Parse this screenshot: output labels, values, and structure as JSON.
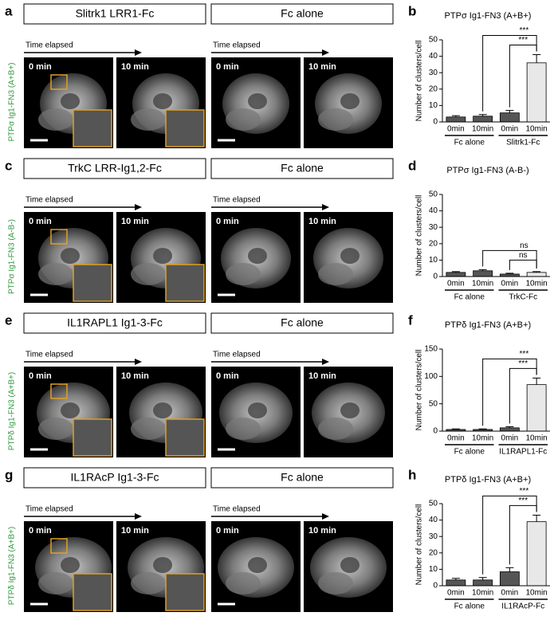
{
  "panels": {
    "rows": [
      {
        "letter": "a",
        "side_label": "PTPσ Ig1-FN3 (A+B+)",
        "columns": [
          {
            "header": "Slitrk1 LRR1-Fc",
            "time_label": "Time elapsed",
            "images": [
              "0 min",
              "10 min"
            ]
          },
          {
            "header": "Fc alone",
            "time_label": "Time elapsed",
            "images": [
              "0 min",
              "10 min"
            ]
          }
        ]
      },
      {
        "letter": "c",
        "side_label": "PTPσ Ig1-FN3 (A-B-)",
        "columns": [
          {
            "header": "TrkC LRR-Ig1,2-Fc",
            "time_label": "Time elapsed",
            "images": [
              "0 min",
              "10 min"
            ]
          },
          {
            "header": "Fc alone",
            "time_label": "Time elapsed",
            "images": [
              "0 min",
              "10 min"
            ]
          }
        ]
      },
      {
        "letter": "e",
        "side_label": "PTPδ Ig1-FN3 (A+B+)",
        "columns": [
          {
            "header": "IL1RAPL1 Ig1-3-Fc",
            "time_label": "Time elapsed",
            "images": [
              "0 min",
              "10 min"
            ]
          },
          {
            "header": "Fc alone",
            "time_label": "Time elapsed",
            "images": [
              "0 min",
              "10 min"
            ]
          }
        ]
      },
      {
        "letter": "g",
        "side_label": "PTPδ Ig1-FN3 (A+B+)",
        "columns": [
          {
            "header": "IL1RAcP Ig1-3-Fc",
            "time_label": "Time elapsed",
            "images": [
              "0 min",
              "10 min"
            ]
          },
          {
            "header": "Fc alone",
            "time_label": "Time elapsed",
            "images": [
              "0 min",
              "10 min"
            ]
          }
        ]
      }
    ]
  },
  "chart_data": [
    {
      "type": "bar",
      "letter": "b",
      "title": "PTPσ Ig1-FN3 (A+B+)",
      "ylabel": "Number of clusters/cell",
      "categories": [
        "0min",
        "10min",
        "0min",
        "10min"
      ],
      "values": [
        3,
        3.5,
        5.5,
        36
      ],
      "errors": [
        0.8,
        1,
        1.5,
        5
      ],
      "colors": [
        "#555555",
        "#555555",
        "#555555",
        "#e8e8e8"
      ],
      "groups": [
        "Fc alone",
        "Slitrk1-Fc"
      ],
      "significance": [
        "***",
        "***"
      ],
      "ylim": [
        0,
        50
      ],
      "yticks": [
        0,
        10,
        20,
        30,
        40,
        50
      ]
    },
    {
      "type": "bar",
      "letter": "d",
      "title": "PTPσ Ig1-FN3 (A-B-)",
      "ylabel": "Number of clusters/cell",
      "categories": [
        "0min",
        "10min",
        "0min",
        "10min"
      ],
      "values": [
        2.5,
        3.5,
        1.5,
        2.5
      ],
      "errors": [
        0.5,
        0.7,
        0.5,
        0.5
      ],
      "colors": [
        "#555555",
        "#555555",
        "#555555",
        "#e8e8e8"
      ],
      "groups": [
        "Fc alone",
        "TrkC-Fc"
      ],
      "significance": [
        "ns",
        "ns"
      ],
      "ylim": [
        0,
        50
      ],
      "yticks": [
        0,
        10,
        20,
        30,
        40,
        50
      ]
    },
    {
      "type": "bar",
      "letter": "f",
      "title": "PTPδ Ig1-FN3 (A+B+)",
      "ylabel": "Number of clusters/cell",
      "categories": [
        "0min",
        "10min",
        "0min",
        "10min"
      ],
      "values": [
        3,
        3,
        6,
        85
      ],
      "errors": [
        1,
        1,
        2,
        12
      ],
      "colors": [
        "#555555",
        "#555555",
        "#555555",
        "#e8e8e8"
      ],
      "groups": [
        "Fc alone",
        "IL1RAPL1-Fc"
      ],
      "significance": [
        "***",
        "***"
      ],
      "ylim": [
        0,
        150
      ],
      "yticks": [
        0,
        50,
        100,
        150
      ]
    },
    {
      "type": "bar",
      "letter": "h",
      "title": "PTPδ Ig1-FN3 (A+B+)",
      "ylabel": "Number of clusters/cell",
      "categories": [
        "0min",
        "10min",
        "0min",
        "10min"
      ],
      "values": [
        3.5,
        3.5,
        8.5,
        39
      ],
      "errors": [
        1,
        1.5,
        2.5,
        4
      ],
      "colors": [
        "#555555",
        "#555555",
        "#555555",
        "#e8e8e8"
      ],
      "groups": [
        "Fc alone",
        "IL1RAcP-Fc"
      ],
      "significance": [
        "***",
        "***"
      ],
      "ylim": [
        0,
        50
      ],
      "yticks": [
        0,
        10,
        20,
        30,
        40,
        50
      ]
    }
  ]
}
